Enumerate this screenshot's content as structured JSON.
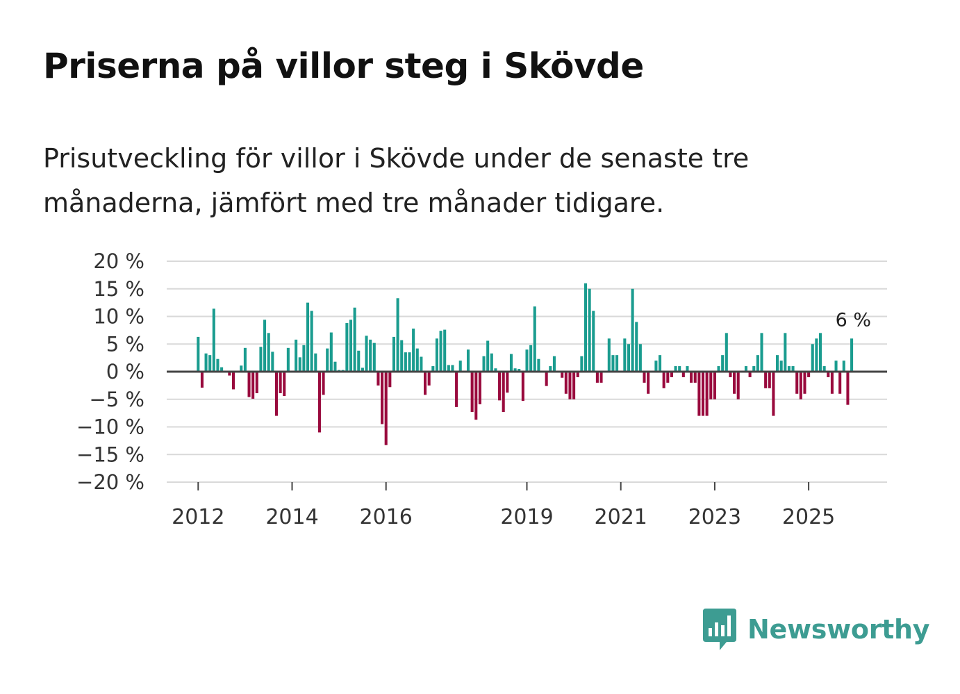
{
  "title": "Priserna på villor steg i Skövde",
  "subtitle": "Prisutveckling för villor i Skövde under de senaste tre månaderna, jämfört med tre månader tidigare.",
  "brand": {
    "name": "Newsworthy",
    "logo_icon": "newsworthy-bar-chart-icon"
  },
  "colors": {
    "positive": "#1a9c8f",
    "negative": "#990a3d",
    "zero_line": "#444444",
    "grid": "#d9d9d9",
    "brand": "#3d9c92"
  },
  "chart_data": {
    "type": "bar",
    "title": "Priserna på villor steg i Skövde",
    "ylabel": "",
    "xlabel": "",
    "ylim": [
      -20,
      20
    ],
    "yticks": [
      20,
      15,
      10,
      5,
      0,
      -5,
      -10,
      -15,
      -20
    ],
    "ytick_labels": [
      "20 %",
      "15 %",
      "10 %",
      "5 %",
      "0 %",
      "−5 %",
      "−10 %",
      "−15 %",
      "−20 %"
    ],
    "xlim": [
      2011.33,
      2026.67
    ],
    "xticks": [
      2012,
      2014,
      2016,
      2019,
      2021,
      2023,
      2025
    ],
    "xtick_labels": [
      "2012",
      "2014",
      "2016",
      "2019",
      "2021",
      "2023",
      "2025"
    ],
    "start": {
      "year": 2012,
      "month": 1
    },
    "unit": "%",
    "end_label": "6 %",
    "values": [
      6.3,
      -2.9,
      3.3,
      3.0,
      11.4,
      2.3,
      0.8,
      0,
      -0.7,
      -3.2,
      0,
      1.1,
      4.3,
      -4.6,
      -4.9,
      -3.9,
      4.5,
      9.4,
      7.0,
      3.6,
      -8.0,
      -3.9,
      -4.4,
      4.3,
      0,
      5.8,
      2.6,
      4.8,
      12.5,
      11.0,
      3.3,
      -11.0,
      -4.2,
      4.2,
      7.1,
      1.8,
      0.3,
      0.3,
      8.8,
      9.4,
      11.6,
      3.8,
      0.7,
      6.5,
      5.8,
      5.2,
      -2.5,
      -9.5,
      -13.3,
      -2.8,
      6.3,
      13.3,
      5.7,
      3.5,
      3.5,
      7.8,
      4.2,
      2.7,
      -4.2,
      -2.5,
      1.0,
      6.0,
      7.4,
      7.6,
      1.2,
      1.2,
      -6.4,
      2.0,
      0,
      4.0,
      -7.3,
      -8.7,
      -5.9,
      2.8,
      5.6,
      3.3,
      0.6,
      -5.2,
      -7.3,
      -3.8,
      3.2,
      0.6,
      0.5,
      -5.3,
      4.0,
      4.8,
      11.8,
      2.3,
      0,
      -2.6,
      1.0,
      2.8,
      0,
      -1.1,
      -4.0,
      -5.0,
      -5.0,
      -1.0,
      2.8,
      16.0,
      15.0,
      11.0,
      -2.0,
      -2.0,
      0,
      6.0,
      3.0,
      3.0,
      0,
      6.0,
      5.0,
      15.0,
      9.0,
      5.0,
      -2.0,
      -4.0,
      0,
      2.0,
      3.0,
      -3.0,
      -2.0,
      -1.0,
      1.0,
      1.0,
      -1.0,
      1.0,
      -2.0,
      -2.0,
      -8.0,
      -8.0,
      -8.0,
      -5.0,
      -5.0,
      1.0,
      3.0,
      7.0,
      -1.0,
      -4.0,
      -5.0,
      0,
      1.0,
      -1.0,
      1.0,
      3.0,
      7.0,
      -3.0,
      -3.0,
      -8.0,
      3.0,
      2.0,
      7.0,
      1.0,
      1.0,
      -4.0,
      -5.0,
      -4.0,
      -1.0,
      5.0,
      6.0,
      7.0,
      1.0,
      -1.0,
      -4.0,
      2.0,
      -4.0,
      2.0,
      -6.0,
      6.0
    ]
  }
}
